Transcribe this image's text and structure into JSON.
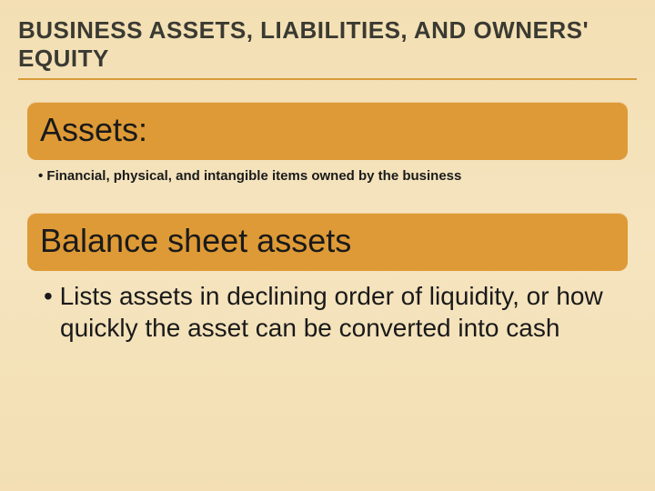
{
  "slide": {
    "title": "BUSINESS ASSETS, LIABILITIES, AND OWNERS' EQUITY",
    "section1": {
      "header": "Assets:",
      "bullet": "Financial, physical, and intangible items owned by the business"
    },
    "section2": {
      "header": "Balance sheet assets",
      "bullet": "Lists assets in declining order of liquidity, or how quickly the asset can be converted into cash"
    }
  },
  "styling": {
    "background_gradient": [
      "#f3dfb3",
      "#f5e4bf",
      "#f3dfb3"
    ],
    "header_bar_color": "#de9a36",
    "header_bar_radius": 10,
    "title_color": "#3a3a32",
    "title_fontsize": 26,
    "title_underline_color": "#d99a3a",
    "header_text_fontsize": 36,
    "bullet_small_fontsize": 15,
    "bullet_large_fontsize": 28,
    "text_color": "#1a1a1a"
  }
}
